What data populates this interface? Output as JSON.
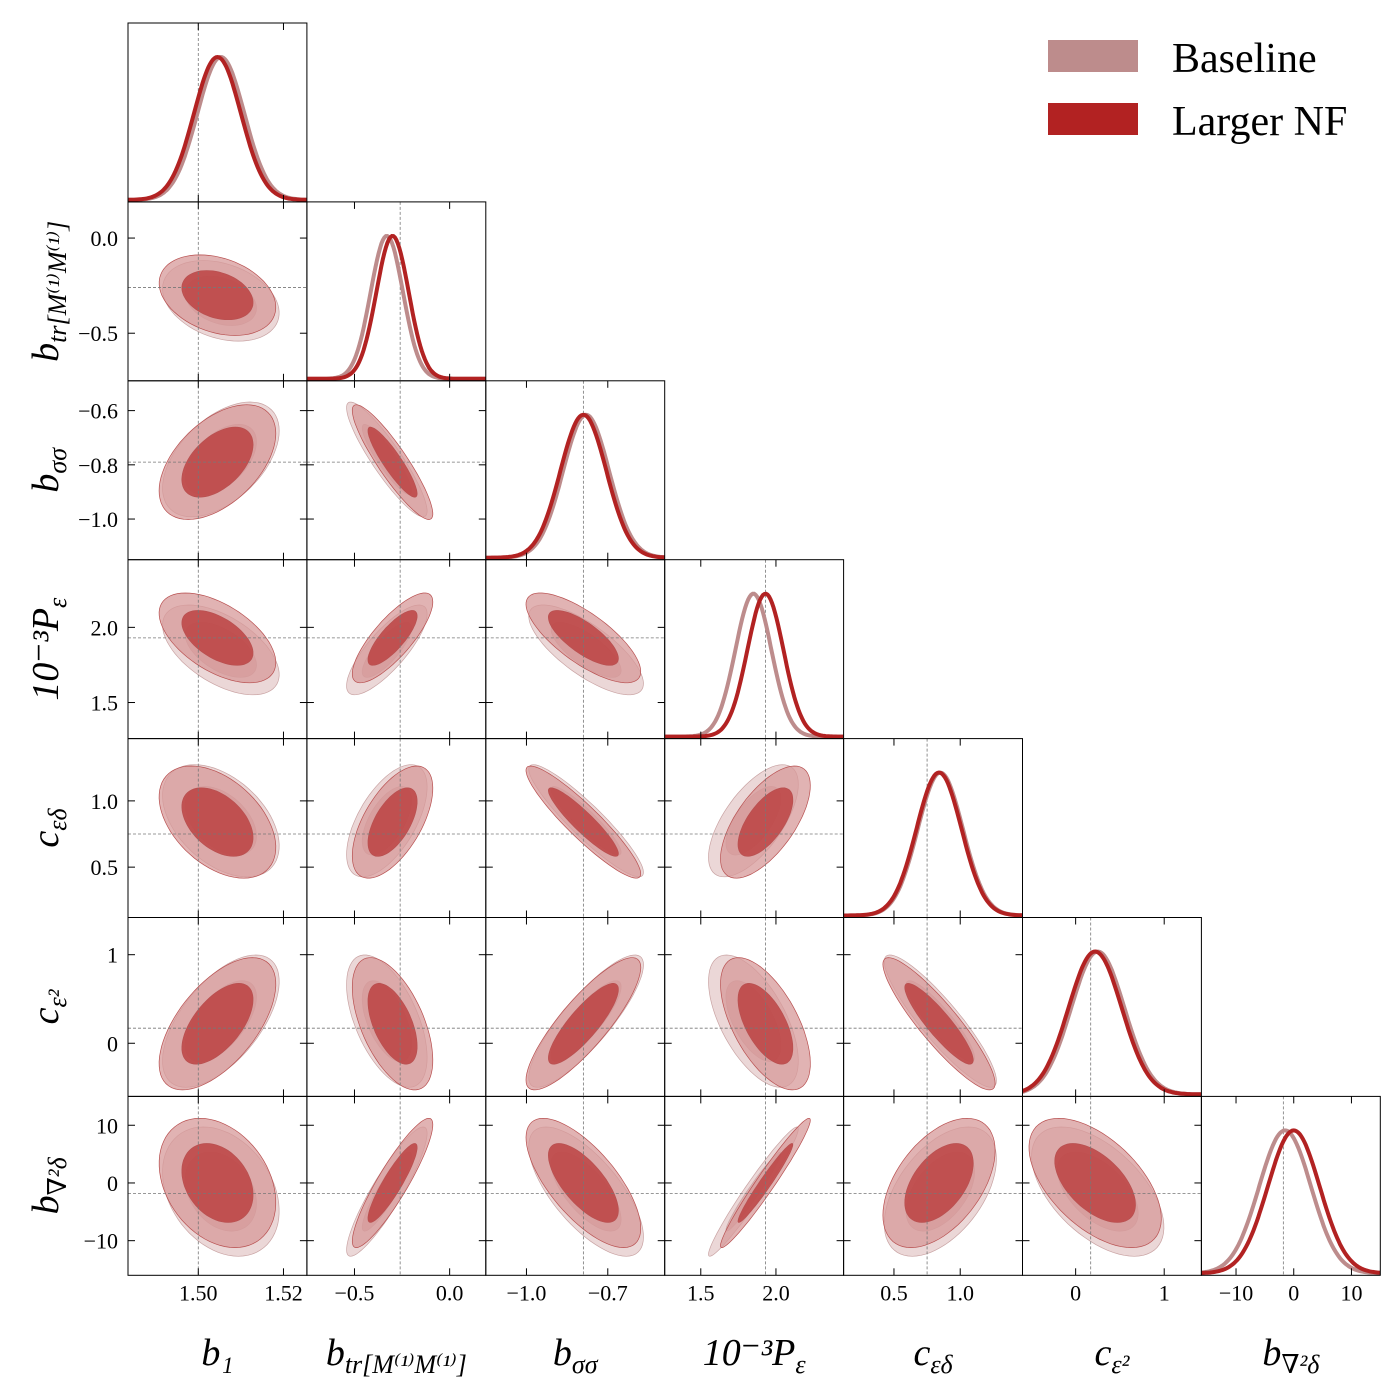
{
  "chart_data": {
    "type": "corner",
    "title": "",
    "parameters": [
      {
        "key": "b1",
        "label": "b₁",
        "truth": 1.5,
        "range": [
          1.4835,
          1.5255
        ],
        "ticks": [
          1.5,
          1.52
        ],
        "tick_labels": [
          "1.50",
          "1.52"
        ]
      },
      {
        "key": "btr",
        "label": "b_tr[M⁽¹⁾M⁽¹⁾]",
        "truth": -0.26,
        "range": [
          -0.75,
          0.19
        ],
        "ticks": [
          -0.5,
          0.0
        ],
        "tick_labels": [
          "−0.5",
          "0.0"
        ]
      },
      {
        "key": "bss",
        "label": "b_σσ",
        "truth": -0.79,
        "range": [
          -1.15,
          -0.49
        ],
        "ticks": [
          -1.0,
          -0.7
        ],
        "tick_labels": [
          "−1.0",
          "−0.7"
        ],
        "y_ticks": [
          -0.6,
          -0.8,
          -1.0
        ],
        "y_tick_labels": [
          "−0.6",
          "−0.8",
          "−1.0"
        ]
      },
      {
        "key": "peps",
        "label": "10⁻³P_ε",
        "truth": 1.93,
        "range": [
          1.26,
          2.45
        ],
        "ticks": [
          1.5,
          2.0
        ],
        "tick_labels": [
          "1.5",
          "2.0"
        ],
        "y_ticks": [
          2.0,
          1.5
        ],
        "y_tick_labels": [
          "2.0",
          "1.5"
        ]
      },
      {
        "key": "ced",
        "label": "c_εδ",
        "truth": 0.75,
        "range": [
          0.12,
          1.47
        ],
        "ticks": [
          0.5,
          1.0
        ],
        "tick_labels": [
          "0.5",
          "1.0"
        ],
        "y_ticks": [
          1.0,
          0.5
        ],
        "y_tick_labels": [
          "1.0",
          "0.5"
        ]
      },
      {
        "key": "ce2",
        "label": "c_ε²",
        "truth": 0.17,
        "range": [
          -0.6,
          1.42
        ],
        "ticks": [
          0,
          1
        ],
        "tick_labels": [
          "0",
          "1"
        ],
        "y_ticks": [
          1,
          0
        ],
        "y_tick_labels": [
          "1",
          "0"
        ]
      },
      {
        "key": "bl2d",
        "label": "b_∇²δ",
        "truth": -1.8,
        "range": [
          -16,
          15
        ],
        "ticks": [
          -10,
          0,
          10
        ],
        "tick_labels": [
          "−10",
          "0",
          "10"
        ]
      }
    ],
    "btr_y_ticks": [
      0.0,
      -0.5
    ],
    "btr_y_tick_labels": [
      "0.0",
      "−0.5"
    ],
    "b1_y_ticks": [],
    "legend": {
      "position": "top-right",
      "entries": [
        {
          "name": "Baseline",
          "color": "#bd8c8c"
        },
        {
          "name": "Larger NF",
          "color": "#b22222"
        }
      ]
    },
    "series": [
      {
        "name": "Baseline",
        "color": "#bd8c8c",
        "mean": [
          1.5053,
          -0.33,
          -0.78,
          1.85,
          0.85,
          0.25,
          -1.5
        ],
        "sigma": [
          0.0055,
          0.085,
          0.085,
          0.12,
          0.17,
          0.3,
          4.5
        ]
      },
      {
        "name": "Larger NF",
        "color": "#b22222",
        "mean": [
          1.5045,
          -0.3,
          -0.79,
          1.93,
          0.84,
          0.22,
          0.0
        ],
        "sigma": [
          0.0055,
          0.085,
          0.085,
          0.12,
          0.17,
          0.3,
          4.5
        ]
      }
    ],
    "correlations": [
      [
        1,
        -0.3,
        0.5,
        -0.55,
        -0.45,
        0.6,
        -0.3
      ],
      [
        -0.3,
        1,
        -0.9,
        0.8,
        0.6,
        -0.55,
        0.9
      ],
      [
        0.5,
        -0.9,
        1,
        -0.75,
        -0.92,
        0.85,
        -0.7
      ],
      [
        -0.55,
        0.8,
        -0.75,
        1,
        0.65,
        -0.6,
        0.97
      ],
      [
        -0.45,
        0.6,
        -0.92,
        0.65,
        1,
        -0.9,
        0.5
      ],
      [
        0.6,
        -0.55,
        0.85,
        -0.6,
        -0.9,
        1,
        -0.55
      ],
      [
        -0.3,
        0.9,
        -0.7,
        0.97,
        0.5,
        -0.55,
        1
      ]
    ]
  }
}
